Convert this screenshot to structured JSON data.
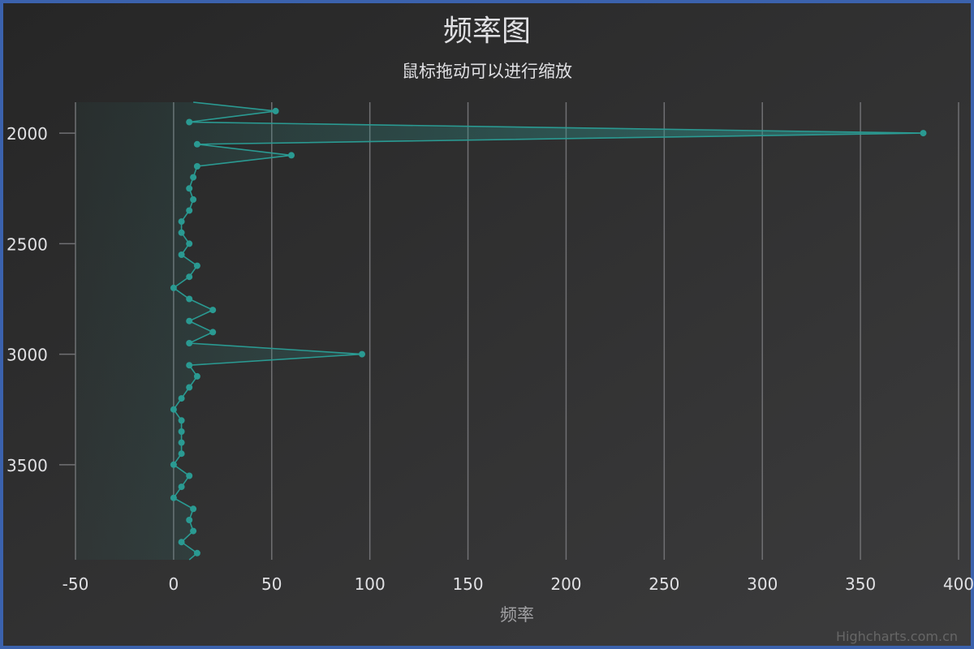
{
  "chart_data": {
    "type": "area",
    "orientation": "inverted",
    "title": "频率图",
    "subtitle": "鼠标拖动可以进行缩放",
    "xlabel": "频率",
    "ylabel": "",
    "x_axis": {
      "min": -50,
      "max": 400,
      "ticks": [
        -50,
        0,
        50,
        100,
        150,
        200,
        250,
        300,
        350,
        400
      ],
      "grid": true
    },
    "category_axis": {
      "min": 1860,
      "max": 3930,
      "ticks": [
        2000,
        2500,
        3000,
        3500
      ]
    },
    "series": [
      {
        "name": "频率",
        "color": "#2a9a92",
        "points": [
          [
            1860,
            10
          ],
          [
            1900,
            52
          ],
          [
            1950,
            8
          ],
          [
            2000,
            382
          ],
          [
            2050,
            12
          ],
          [
            2100,
            60
          ],
          [
            2150,
            12
          ],
          [
            2200,
            10
          ],
          [
            2250,
            8
          ],
          [
            2300,
            10
          ],
          [
            2350,
            8
          ],
          [
            2400,
            4
          ],
          [
            2450,
            4
          ],
          [
            2500,
            8
          ],
          [
            2550,
            4
          ],
          [
            2600,
            12
          ],
          [
            2650,
            8
          ],
          [
            2700,
            0
          ],
          [
            2750,
            8
          ],
          [
            2800,
            20
          ],
          [
            2850,
            8
          ],
          [
            2900,
            20
          ],
          [
            2950,
            8
          ],
          [
            3000,
            96
          ],
          [
            3050,
            8
          ],
          [
            3100,
            12
          ],
          [
            3150,
            8
          ],
          [
            3200,
            4
          ],
          [
            3250,
            0
          ],
          [
            3300,
            4
          ],
          [
            3350,
            4
          ],
          [
            3400,
            4
          ],
          [
            3450,
            4
          ],
          [
            3500,
            0
          ],
          [
            3550,
            8
          ],
          [
            3600,
            4
          ],
          [
            3650,
            0
          ],
          [
            3700,
            10
          ],
          [
            3750,
            8
          ],
          [
            3800,
            10
          ],
          [
            3850,
            4
          ],
          [
            3900,
            12
          ],
          [
            3930,
            8
          ]
        ]
      }
    ]
  },
  "credits": "Highcharts.com.cn"
}
